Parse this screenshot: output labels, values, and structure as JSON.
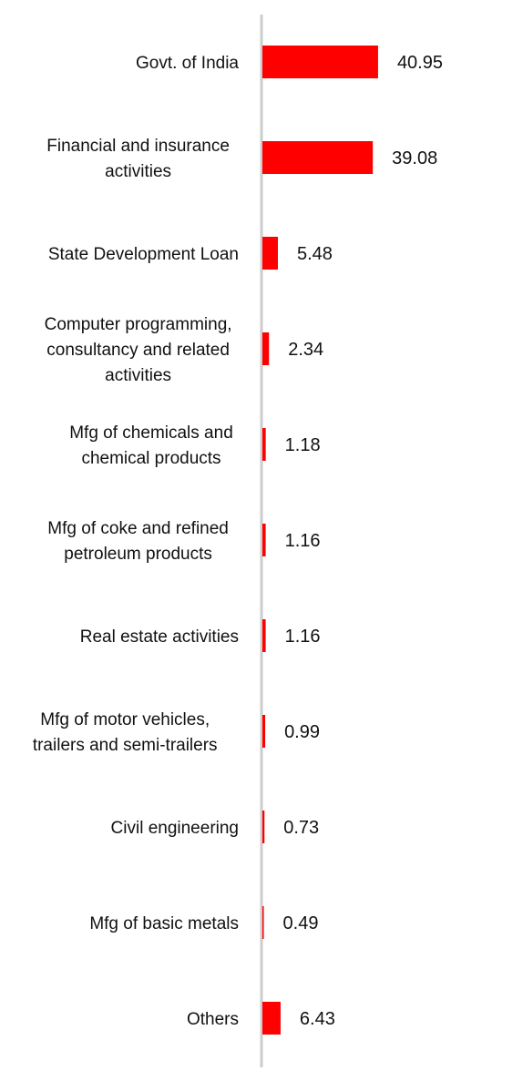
{
  "colors": {
    "bar": "#ff0000",
    "axis": "#cccccc",
    "text": "#111111"
  },
  "chart_data": {
    "type": "bar",
    "orientation": "horizontal",
    "title": "",
    "xlabel": "",
    "ylabel": "",
    "xlim": [
      0,
      45
    ],
    "grid": false,
    "legend": "none",
    "categories": [
      "Govt. of India",
      "Financial and insurance activities",
      "State Development Loan",
      "Computer programming, consultancy and related activities",
      "Mfg of chemicals and chemical products",
      "Mfg of coke and refined petroleum products",
      "Real estate activities",
      "Mfg of motor vehicles, trailers and semi-trailers",
      "Civil engineering",
      "Mfg of basic metals",
      "Others"
    ],
    "category_lines": [
      [
        "Govt. of India"
      ],
      [
        "Financial and insurance",
        "activities"
      ],
      [
        "State Development Loan"
      ],
      [
        "Computer programming,",
        "consultancy and related",
        "activities"
      ],
      [
        "Mfg of chemicals and",
        "chemical products"
      ],
      [
        "Mfg of coke and refined",
        "petroleum products"
      ],
      [
        "Real estate activities"
      ],
      [
        "Mfg of motor vehicles,",
        "trailers and semi-trailers"
      ],
      [
        "Civil engineering"
      ],
      [
        "Mfg of basic metals"
      ],
      [
        "Others"
      ]
    ],
    "values": [
      40.95,
      39.08,
      5.48,
      2.34,
      1.18,
      1.16,
      1.16,
      0.99,
      0.73,
      0.49,
      6.43
    ],
    "value_labels": [
      "40.95",
      "39.08",
      "5.48",
      "2.34",
      "1.18",
      "1.16",
      "1.16",
      "0.99",
      "0.73",
      "0.49",
      "6.43"
    ]
  }
}
